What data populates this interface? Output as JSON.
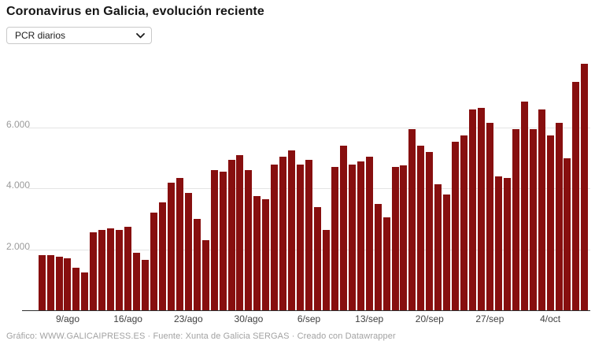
{
  "header": {
    "title": "Coronavirus en Galicia, evolución reciente"
  },
  "controls": {
    "metric_select": {
      "value": "PCR diarios",
      "icon": "chevron-down-icon"
    }
  },
  "chart_data": {
    "type": "bar",
    "title": "PCR diarios",
    "xlabel": "",
    "ylabel": "",
    "ylim": [
      0,
      8200
    ],
    "grid": true,
    "legend_position": "none",
    "bar_color": "#870f0f",
    "x": [
      "6/ago",
      "7/ago",
      "8/ago",
      "9/ago",
      "10/ago",
      "11/ago",
      "12/ago",
      "13/ago",
      "14/ago",
      "15/ago",
      "16/ago",
      "17/ago",
      "18/ago",
      "19/ago",
      "20/ago",
      "21/ago",
      "22/ago",
      "23/ago",
      "24/ago",
      "25/ago",
      "26/ago",
      "27/ago",
      "28/ago",
      "29/ago",
      "30/ago",
      "31/ago",
      "1/sep",
      "2/sep",
      "3/sep",
      "4/sep",
      "5/sep",
      "6/sep",
      "7/sep",
      "8/sep",
      "9/sep",
      "10/sep",
      "11/sep",
      "12/sep",
      "13/sep",
      "14/sep",
      "15/sep",
      "16/sep",
      "17/sep",
      "18/sep",
      "19/sep",
      "20/sep",
      "21/sep",
      "22/sep",
      "23/sep",
      "24/sep",
      "25/sep",
      "26/sep",
      "27/sep",
      "28/sep",
      "29/sep",
      "30/sep",
      "1/oct",
      "2/oct",
      "3/oct",
      "4/oct",
      "5/oct",
      "6/oct",
      "7/oct",
      "8/oct"
    ],
    "values": [
      1800,
      1800,
      1750,
      1700,
      1400,
      1250,
      2550,
      2650,
      2700,
      2650,
      2750,
      1900,
      1650,
      3200,
      3550,
      4200,
      4350,
      3850,
      3000,
      2300,
      4600,
      4550,
      4950,
      5100,
      4600,
      3750,
      3650,
      4800,
      5050,
      5250,
      4800,
      4950,
      3400,
      2650,
      4700,
      5400,
      4800,
      4900,
      5050,
      3500,
      3050,
      4700,
      4750,
      5950,
      5400,
      5200,
      4150,
      3800,
      5550,
      5750,
      6600,
      6650,
      6150,
      4400,
      4350,
      5950,
      6850,
      5950,
      6600,
      5750,
      6150,
      5000,
      7500,
      8100
    ],
    "y_ticks": [
      2000,
      4000,
      6000
    ],
    "y_tick_labels": [
      "2.000",
      "4.000",
      "6.000"
    ],
    "x_tick_labels": [
      "9/ago",
      "16/ago",
      "23/ago",
      "30/ago",
      "6/sep",
      "13/sep",
      "20/sep",
      "27/sep",
      "4/oct"
    ]
  },
  "footer": {
    "credit": "Gráfico: WWW.GALICAIPRESS.ES · Fuente: Xunta de Galicia SERGAS · Creado con Datawrapper"
  }
}
